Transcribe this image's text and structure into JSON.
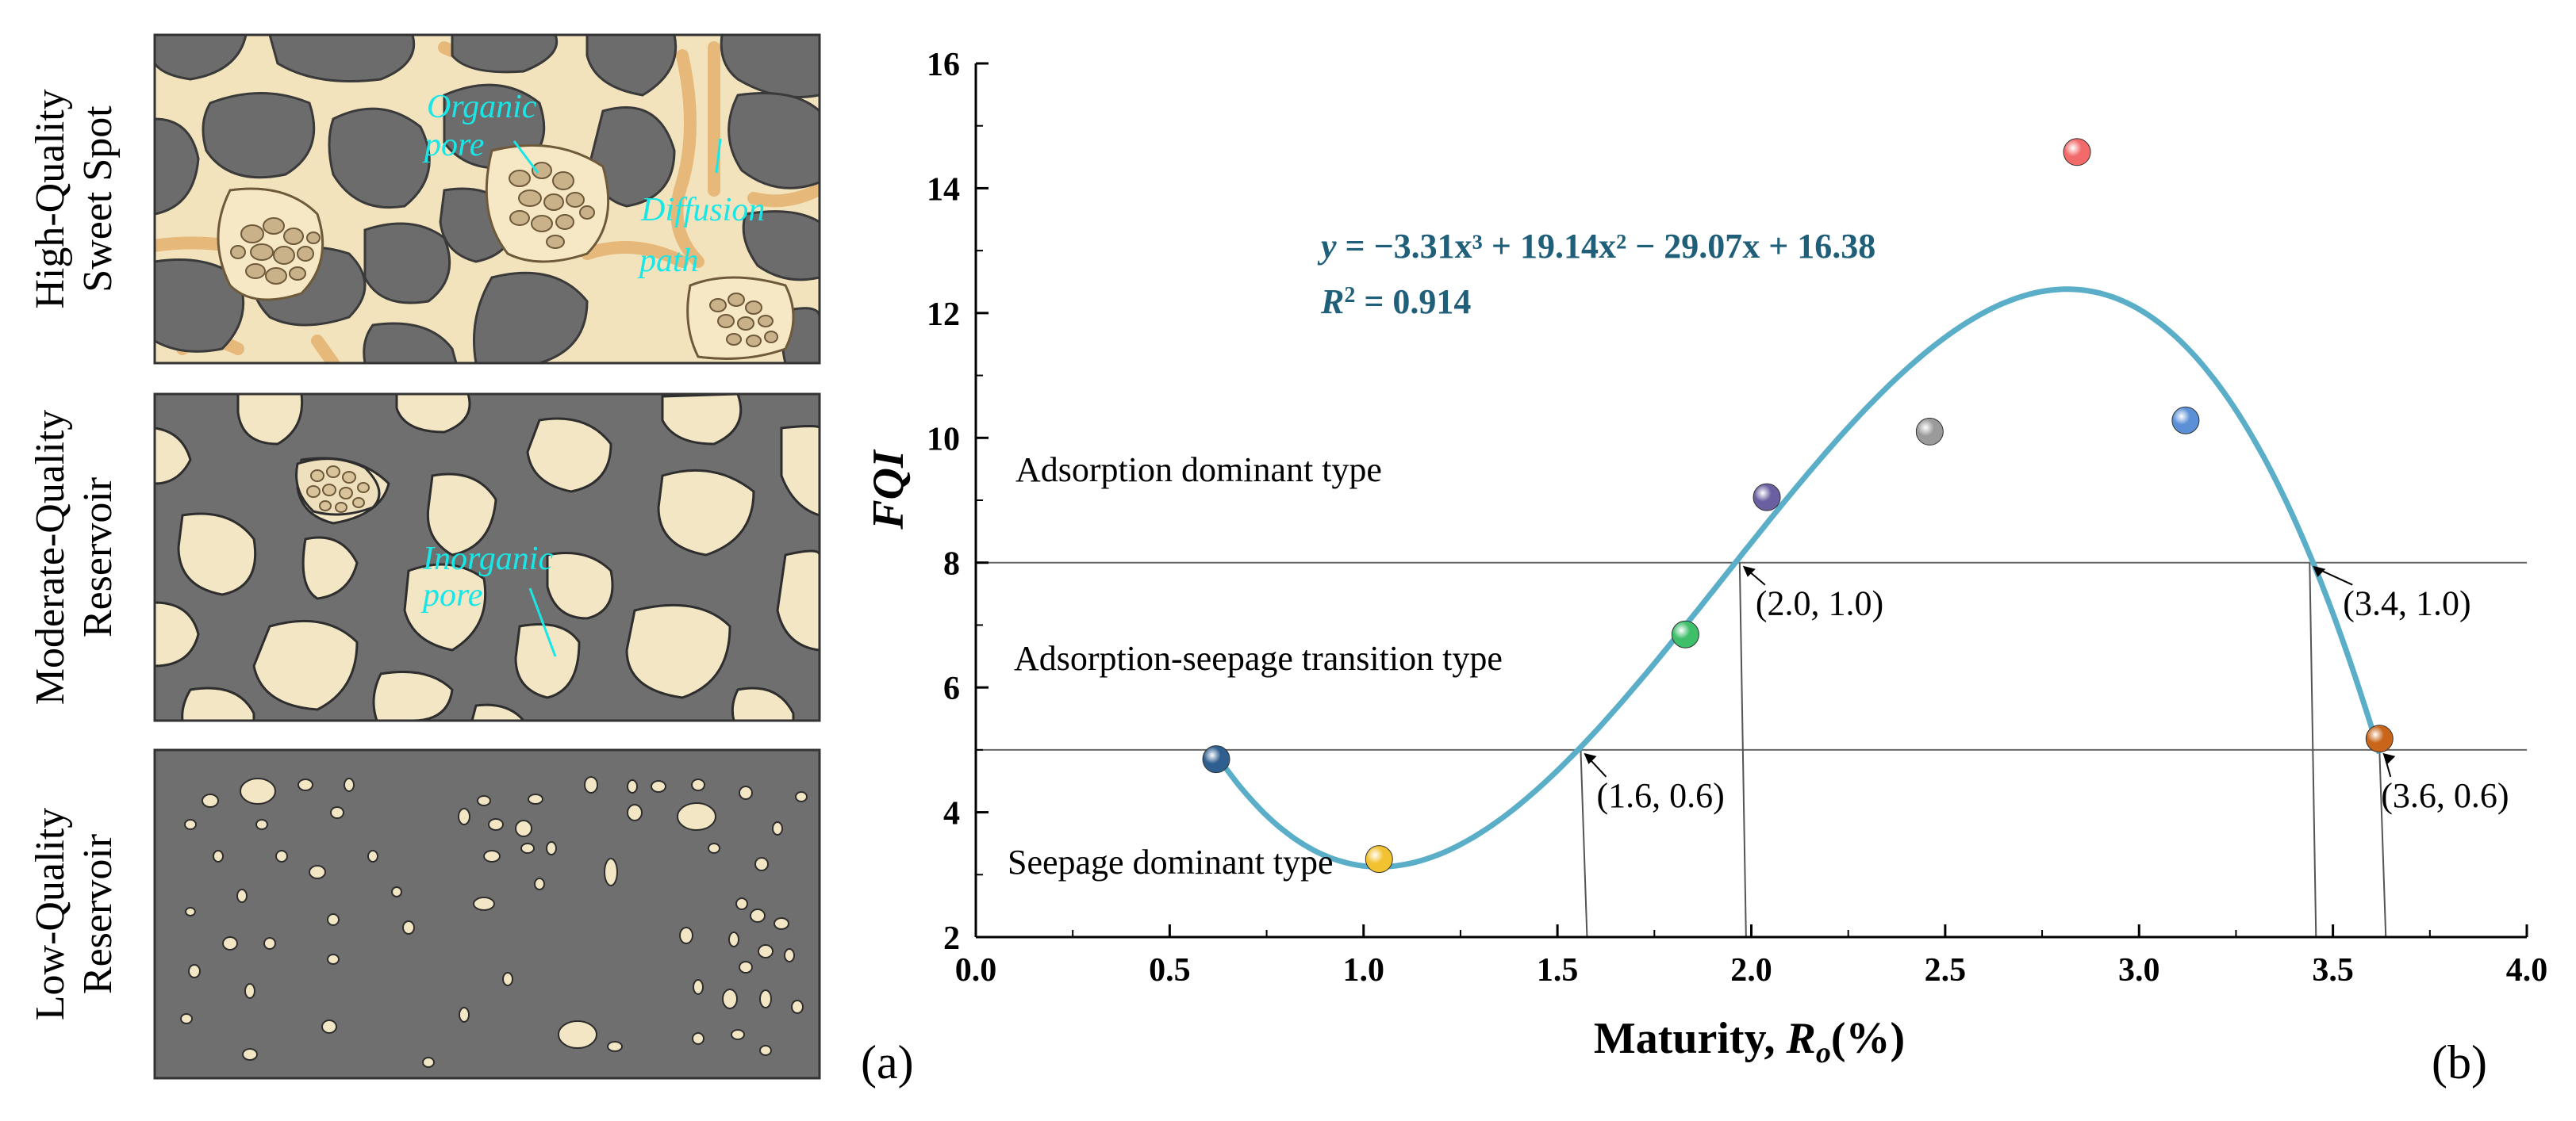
{
  "panel_a": {
    "label": "(a)",
    "rows": [
      {
        "title_line1": "High-Quality",
        "title_line2": "Sweet Spot"
      },
      {
        "title_line1": "Moderate-Quality",
        "title_line2": "Reservoir"
      },
      {
        "title_line1": "Low-Quality",
        "title_line2": "Reservoir"
      }
    ],
    "annotations": {
      "organic_1": "Organic",
      "organic_2": "pore",
      "diffusion_1": "Diffusion",
      "diffusion_2": "path",
      "inorganic_1": "Inorganic",
      "inorganic_2": "pore"
    },
    "colors": {
      "matrix": "#6f6f6f",
      "grain": "#f3e6c4",
      "pore_fill": "#f6e7c5",
      "organic": "#c9b18a",
      "path": "#e6b97a",
      "annotation": "#19e6e6"
    }
  },
  "panel_b_label": "(b)",
  "chart_data": {
    "type": "scatter",
    "title": "",
    "xlabel_prefix": "Maturity, ",
    "xlabel_var": "R",
    "xlabel_sub": "o",
    "xlabel_suffix": "(%)",
    "ylabel": "FQI",
    "xlim": [
      0.0,
      4.0
    ],
    "ylim": [
      2,
      16
    ],
    "x_ticks": [
      "0.0",
      "0.5",
      "1.0",
      "1.5",
      "2.0",
      "2.5",
      "3.0",
      "3.5",
      "4.0"
    ],
    "y_ticks": [
      "2",
      "4",
      "6",
      "8",
      "10",
      "12",
      "14",
      "16"
    ],
    "points": [
      {
        "x": 0.62,
        "y": 4.85,
        "color": "#2f5f8f"
      },
      {
        "x": 1.04,
        "y": 3.25,
        "color": "#f2c230"
      },
      {
        "x": 1.83,
        "y": 6.85,
        "color": "#3fbf6a"
      },
      {
        "x": 2.04,
        "y": 9.05,
        "color": "#6a5fa0"
      },
      {
        "x": 2.46,
        "y": 10.1,
        "color": "#9a9a9a"
      },
      {
        "x": 2.84,
        "y": 14.58,
        "color": "#f26a6a"
      },
      {
        "x": 3.12,
        "y": 10.28,
        "color": "#5b8fd6"
      },
      {
        "x": 3.62,
        "y": 5.18,
        "color": "#c8651a"
      }
    ],
    "fit": {
      "coefficients": [
        -3.31,
        19.14,
        -29.07,
        16.38
      ],
      "x_range": [
        0.62,
        3.62
      ],
      "color": "#5aaec8",
      "equation_prefix": "y",
      "equation_text": " = −3.31x³ + 19.14x² − 29.07x + 16.38",
      "r2_var": "R",
      "r2_text": " = 0.914",
      "text_color": "#1f5f7a"
    },
    "thresholds": [
      {
        "y": 8,
        "label": "8"
      },
      {
        "y": 5,
        "label": "5"
      }
    ],
    "zones": [
      {
        "label": "Adsorption dominant type"
      },
      {
        "label": "Adsorption-seepage transition type"
      },
      {
        "label": "Seepage dominant type"
      }
    ],
    "annotations": [
      {
        "label": "(2.0, 1.0)",
        "x": 1.97,
        "y": 8.0
      },
      {
        "label": "(3.4, 1.0)",
        "x": 3.44,
        "y": 8.0
      },
      {
        "label": "(1.6, 0.6)",
        "x": 1.56,
        "y": 5.0
      },
      {
        "label": "(3.6, 0.6)",
        "x": 3.62,
        "y": 5.0
      }
    ]
  }
}
